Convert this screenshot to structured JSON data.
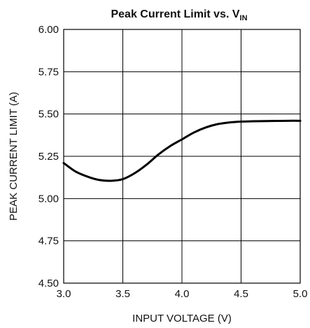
{
  "chart_data": {
    "type": "line",
    "title": "Peak Current Limit vs. V",
    "title_subscript": "IN",
    "xlabel": "INPUT VOLTAGE (V)",
    "ylabel": "PEAK CURRENT LIMIT (A)",
    "xlim": [
      3.0,
      5.0
    ],
    "ylim": [
      4.5,
      6.0
    ],
    "x_ticks": [
      "3.0",
      "3.5",
      "4.0",
      "4.5",
      "5.0"
    ],
    "y_ticks": [
      "6.00",
      "5.75",
      "5.50",
      "5.25",
      "5.00",
      "4.75",
      "4.50"
    ],
    "grid": true,
    "series": [
      {
        "x": [
          3.0,
          3.1,
          3.2,
          3.3,
          3.4,
          3.5,
          3.6,
          3.7,
          3.8,
          3.9,
          4.0,
          4.1,
          4.2,
          4.3,
          4.4,
          4.5,
          4.6,
          4.7,
          4.8,
          4.9,
          5.0
        ],
        "values": [
          5.21,
          5.16,
          5.13,
          5.11,
          5.105,
          5.115,
          5.15,
          5.2,
          5.26,
          5.31,
          5.35,
          5.39,
          5.42,
          5.44,
          5.45,
          5.455,
          5.457,
          5.458,
          5.459,
          5.46,
          5.46
        ]
      }
    ]
  }
}
